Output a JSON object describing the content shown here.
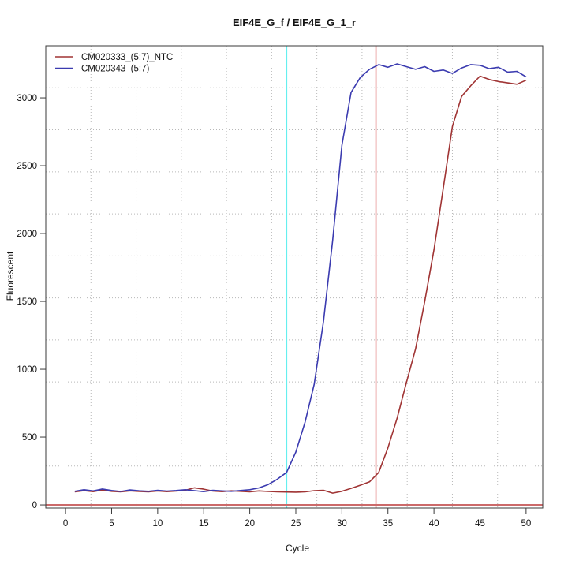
{
  "title": "EIF4E_G_f / EIF4E_G_1_r",
  "chart_data": {
    "type": "line",
    "title": "EIF4E_G_f / EIF4E_G_1_r",
    "xlabel": "Cycle",
    "ylabel": "Fluorescent",
    "xlim": [
      -2.15,
      51.81
    ],
    "ylim": [
      -23,
      3384
    ],
    "xticks": [
      0,
      5,
      10,
      15,
      20,
      25,
      30,
      35,
      40,
      45,
      50
    ],
    "yticks": [
      0,
      500,
      1000,
      1500,
      2000,
      2500,
      3000
    ],
    "grid": {
      "style": "dotted",
      "divisions_x": 11,
      "divisions_y": 11,
      "color": "#b8b8b8"
    },
    "legend_position": "top-left",
    "x": [
      1,
      2,
      3,
      4,
      5,
      6,
      7,
      8,
      9,
      10,
      11,
      12,
      13,
      14,
      15,
      16,
      17,
      18,
      19,
      20,
      21,
      22,
      23,
      24,
      25,
      26,
      27,
      28,
      29,
      30,
      31,
      32,
      33,
      34,
      35,
      36,
      37,
      38,
      39,
      40,
      41,
      42,
      43,
      44,
      45,
      46,
      47,
      48,
      49,
      50
    ],
    "series": [
      {
        "name": "CM020333_(5:7)_NTC",
        "color": "#a03434",
        "values": [
          97,
          105,
          98,
          110,
          100,
          96,
          104,
          99,
          96,
          103,
          98,
          102,
          108,
          126,
          116,
          102,
          98,
          104,
          100,
          97,
          103,
          99,
          96,
          95,
          94,
          96,
          105,
          108,
          87,
          100,
          122,
          145,
          170,
          240,
          420,
          640,
          900,
          1150,
          1500,
          1880,
          2330,
          2790,
          3010,
          3090,
          3160,
          3135,
          3120,
          3110,
          3100,
          3130
        ]
      },
      {
        "name": "CM020343_(5:7)",
        "color": "#3b3bb0",
        "values": [
          100,
          112,
          103,
          117,
          106,
          99,
          110,
          104,
          100,
          108,
          102,
          106,
          112,
          105,
          98,
          107,
          103,
          100,
          106,
          112,
          125,
          150,
          190,
          240,
          390,
          610,
          890,
          1350,
          1950,
          2650,
          3040,
          3150,
          3210,
          3245,
          3225,
          3250,
          3230,
          3210,
          3230,
          3195,
          3205,
          3180,
          3220,
          3245,
          3240,
          3215,
          3225,
          3190,
          3195,
          3155
        ]
      }
    ],
    "markers": {
      "vlines": [
        {
          "x": 24.0,
          "color": "#66efef",
          "id": "cyan-marker-line"
        },
        {
          "x": 33.7,
          "color": "#e07a7a",
          "id": "red-marker-line"
        }
      ],
      "hlines": [
        {
          "y": 0,
          "color": "#cc6a6a",
          "id": "zero-threshold-line"
        }
      ]
    },
    "axis_color": "#3a3a3a"
  }
}
